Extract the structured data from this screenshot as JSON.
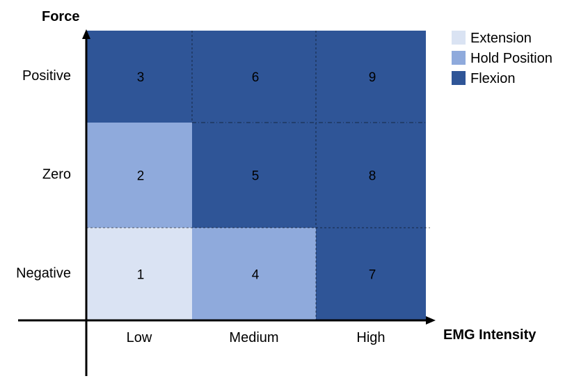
{
  "diagram": {
    "y_axis_title": "Force",
    "x_axis_title": "EMG Intensity",
    "y_levels": [
      "Negative",
      "Zero",
      "Positive"
    ],
    "x_levels": [
      "Low",
      "Medium",
      "High"
    ],
    "legend": [
      {
        "label": "Extension",
        "color": "#dae3f3"
      },
      {
        "label": "Hold Position",
        "color": "#8faadc"
      },
      {
        "label": "Flexion",
        "color": "#2f5597"
      }
    ],
    "cells": [
      {
        "number": "1",
        "x": "Low",
        "y": "Negative",
        "state": "Extension"
      },
      {
        "number": "2",
        "x": "Low",
        "y": "Zero",
        "state": "Hold Position"
      },
      {
        "number": "3",
        "x": "Low",
        "y": "Positive",
        "state": "Flexion"
      },
      {
        "number": "4",
        "x": "Medium",
        "y": "Negative",
        "state": "Hold Position"
      },
      {
        "number": "5",
        "x": "Medium",
        "y": "Zero",
        "state": "Flexion"
      },
      {
        "number": "6",
        "x": "Medium",
        "y": "Positive",
        "state": "Flexion"
      },
      {
        "number": "7",
        "x": "High",
        "y": "Negative",
        "state": "Flexion"
      },
      {
        "number": "8",
        "x": "High",
        "y": "Zero",
        "state": "Flexion"
      },
      {
        "number": "9",
        "x": "High",
        "y": "Positive",
        "state": "Flexion"
      }
    ]
  }
}
